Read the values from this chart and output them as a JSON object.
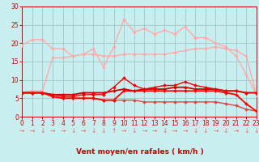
{
  "background_color": "#c8eef0",
  "grid_color": "#a0c8c8",
  "xlabel": "Vent moyen/en rafales ( km/h )",
  "xlabel_color": "#cc0000",
  "xlabel_fontsize": 6.5,
  "tick_color": "#cc0000",
  "tick_fontsize": 5.5,
  "ylim": [
    0,
    30
  ],
  "xlim": [
    0,
    23
  ],
  "yticks": [
    0,
    5,
    10,
    15,
    20,
    25,
    30
  ],
  "xticks": [
    0,
    1,
    2,
    3,
    4,
    5,
    6,
    7,
    8,
    9,
    10,
    11,
    12,
    13,
    14,
    15,
    16,
    17,
    18,
    19,
    20,
    21,
    22,
    23
  ],
  "series": [
    {
      "x": [
        0,
        1,
        2,
        3,
        4,
        5,
        6,
        7,
        8,
        9,
        10,
        11,
        12,
        13,
        14,
        15,
        16,
        17,
        18,
        19,
        20,
        21,
        22,
        23
      ],
      "y": [
        19.5,
        21,
        21,
        18.5,
        18.5,
        16.5,
        17,
        18.5,
        13.5,
        19,
        26.5,
        23,
        24,
        22.5,
        23.5,
        22.5,
        24.5,
        21.5,
        21.5,
        20,
        19,
        16.5,
        11.5,
        6
      ],
      "color": "#ffaaaa",
      "linewidth": 1.0,
      "marker": "D",
      "markersize": 2.0
    },
    {
      "x": [
        0,
        1,
        2,
        3,
        4,
        5,
        6,
        7,
        8,
        9,
        10,
        11,
        12,
        13,
        14,
        15,
        16,
        17,
        18,
        19,
        20,
        21,
        22,
        23
      ],
      "y": [
        6.5,
        7,
        7,
        16,
        16,
        16.5,
        17,
        17,
        16.5,
        16.5,
        17,
        17,
        17,
        17,
        17,
        17.5,
        18,
        18.5,
        18.5,
        19,
        18.5,
        18,
        16.5,
        6
      ],
      "color": "#ffaaaa",
      "linewidth": 1.0,
      "marker": "D",
      "markersize": 2.0
    },
    {
      "x": [
        0,
        1,
        2,
        3,
        4,
        5,
        6,
        7,
        8,
        9,
        10,
        11,
        12,
        13,
        14,
        15,
        16,
        17,
        18,
        19,
        20,
        21,
        22,
        23
      ],
      "y": [
        6.5,
        6.5,
        6.5,
        5.5,
        5.0,
        5.0,
        5.0,
        5.0,
        4.5,
        4.5,
        4.5,
        4.5,
        4.0,
        4.0,
        4.0,
        4.0,
        4.0,
        4.0,
        4.0,
        4.0,
        3.5,
        3.0,
        2.0,
        1.5
      ],
      "color": "#dd4444",
      "linewidth": 1.0,
      "marker": "D",
      "markersize": 2.0
    },
    {
      "x": [
        0,
        1,
        2,
        3,
        4,
        5,
        6,
        7,
        8,
        9,
        10,
        11,
        12,
        13,
        14,
        15,
        16,
        17,
        18,
        19,
        20,
        21,
        22,
        23
      ],
      "y": [
        6.5,
        6.5,
        6.5,
        6.0,
        6.0,
        6.0,
        6.5,
        6.5,
        6.5,
        7.0,
        7.5,
        7.0,
        7.5,
        7.5,
        7.5,
        8.0,
        8.0,
        7.5,
        7.5,
        7.5,
        7.0,
        7.0,
        6.5,
        6.5
      ],
      "color": "#cc0000",
      "linewidth": 1.3,
      "marker": "D",
      "markersize": 2.0
    },
    {
      "x": [
        0,
        1,
        2,
        3,
        4,
        5,
        6,
        7,
        8,
        9,
        10,
        11,
        12,
        13,
        14,
        15,
        16,
        17,
        18,
        19,
        20,
        21,
        22,
        23
      ],
      "y": [
        6.5,
        6.5,
        6.5,
        6.0,
        5.5,
        5.5,
        6.0,
        6.0,
        6.0,
        8.0,
        10.5,
        8.5,
        7.5,
        8.0,
        8.5,
        8.5,
        9.5,
        8.5,
        8.0,
        7.5,
        7.0,
        7.0,
        6.5,
        6.5
      ],
      "color": "#ee0000",
      "linewidth": 1.0,
      "marker": "D",
      "markersize": 2.0
    },
    {
      "x": [
        0,
        1,
        2,
        3,
        4,
        5,
        6,
        7,
        8,
        9,
        10,
        11,
        12,
        13,
        14,
        15,
        16,
        17,
        18,
        19,
        20,
        21,
        22,
        23
      ],
      "y": [
        6.5,
        6.5,
        6.5,
        5.5,
        5.0,
        5.0,
        5.0,
        5.0,
        4.5,
        4.5,
        7.0,
        7.0,
        7.0,
        7.0,
        7.0,
        7.0,
        7.0,
        7.0,
        7.0,
        7.0,
        6.5,
        6.0,
        3.5,
        1.5
      ],
      "color": "#ff0000",
      "linewidth": 1.3,
      "marker": "D",
      "markersize": 2.0
    }
  ],
  "arrow_symbols": [
    "→",
    "→",
    "↓",
    "→",
    "→",
    "↓",
    "→",
    "↓",
    "↓",
    "↑",
    "→",
    "↓",
    "→",
    "→",
    "↓",
    "→",
    "→",
    "↓",
    "↓",
    "→",
    "↓",
    "→",
    "↓",
    "↓"
  ],
  "arrow_color": "#ee6666"
}
